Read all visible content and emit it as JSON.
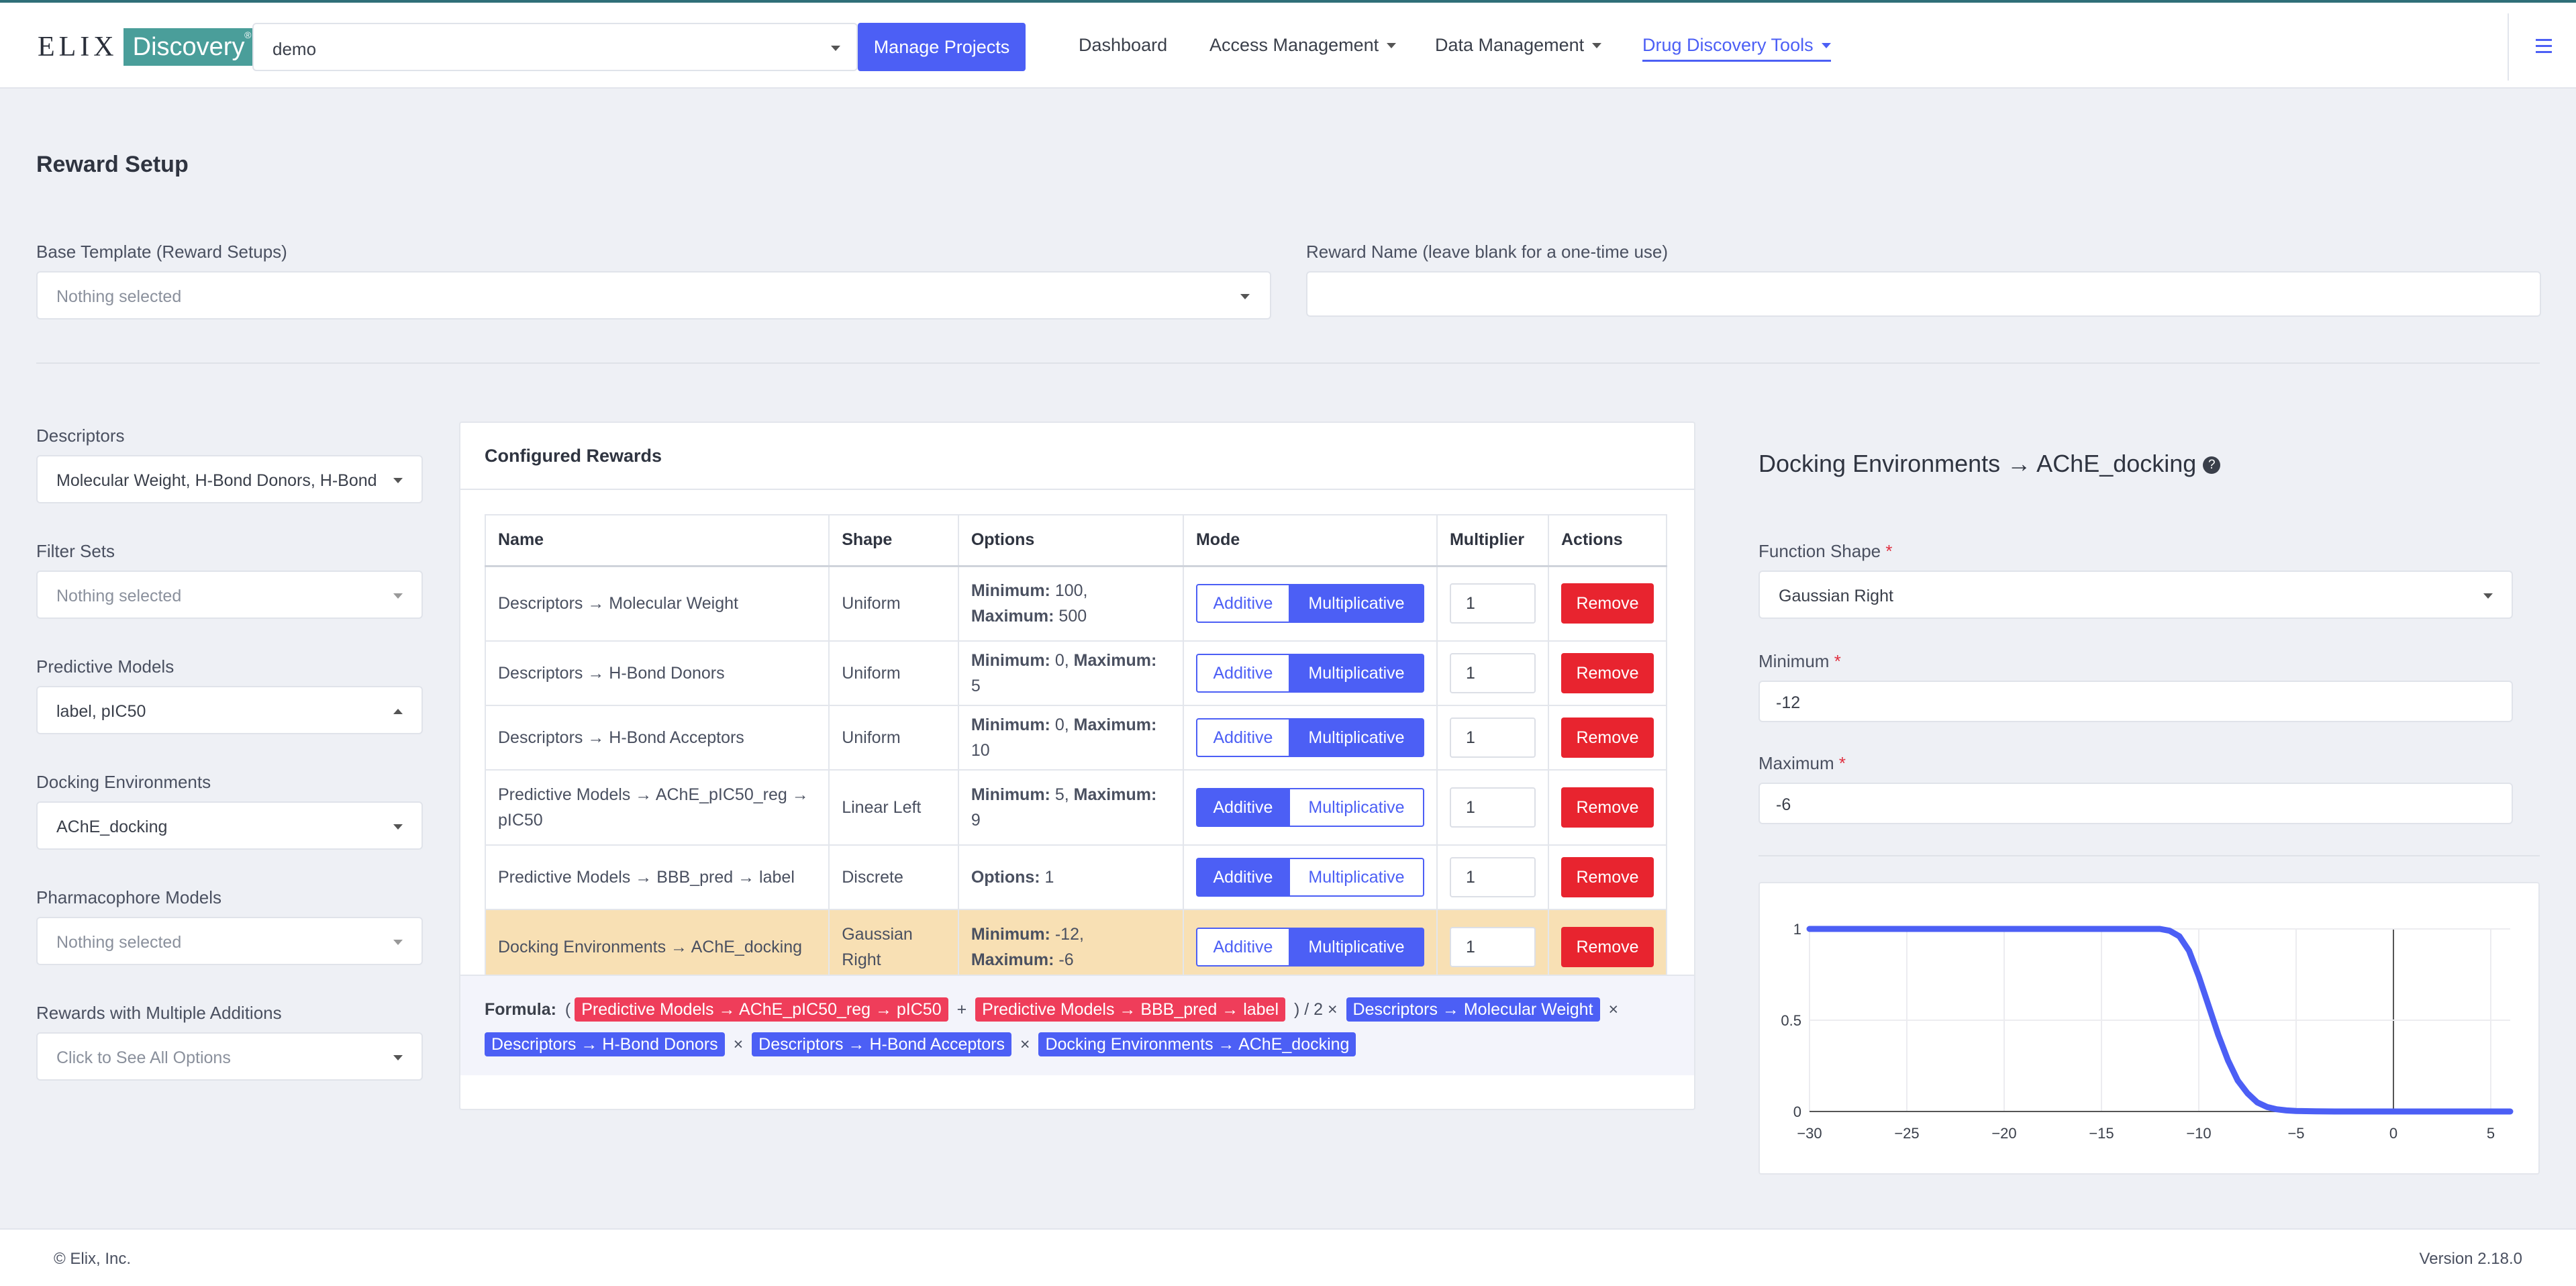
{
  "navbar": {
    "logo_text": "ELIX",
    "logo_badge": "Discovery",
    "project_value": "demo",
    "manage_projects": "Manage Projects",
    "links": [
      "Dashboard",
      "Access Management",
      "Data Management",
      "Drug Discovery Tools"
    ],
    "accent_color": "#4c5ff5"
  },
  "page": {
    "title": "Reward Setup",
    "base_template_label": "Base Template (Reward Setups)",
    "base_template_placeholder": "Nothing selected",
    "reward_name_label": "Reward Name (leave blank for a one-time use)",
    "reward_name_value": ""
  },
  "sidebar": {
    "descriptors_label": "Descriptors",
    "descriptors_value": "Molecular Weight, H-Bond Donors, H-Bond",
    "filter_sets_label": "Filter Sets",
    "filter_sets_value": "Nothing selected",
    "predictive_models_label": "Predictive Models",
    "predictive_models_value": "label, pIC50",
    "docking_label": "Docking Environments",
    "docking_value": "AChE_docking",
    "pharmacophore_label": "Pharmacophore Models",
    "pharmacophore_value": "Nothing selected",
    "multi_label": "Rewards with Multiple Additions",
    "multi_value": "Click to See All Options"
  },
  "configured": {
    "title": "Configured Rewards",
    "headers": [
      "Name",
      "Shape",
      "Options",
      "Mode",
      "Multiplier",
      "Actions"
    ],
    "additive_label": "Additive",
    "multiplicative_label": "Multiplicative",
    "remove_label": "Remove",
    "rows": [
      {
        "name": "Descriptors → Molecular Weight",
        "shape": "Uniform",
        "k1": "Minimum:",
        "v1": " 100, ",
        "k2": "Maximum:",
        "v2": " 500",
        "mode": "multiplicative",
        "mult": "1"
      },
      {
        "name": "Descriptors → H-Bond Donors",
        "shape": "Uniform",
        "k1": "Minimum:",
        "v1": " 0, ",
        "k2": "Maximum:",
        "v2": " 5",
        "mode": "multiplicative",
        "mult": "1"
      },
      {
        "name": "Descriptors → H-Bond Acceptors",
        "shape": "Uniform",
        "k1": "Minimum:",
        "v1": " 0, ",
        "k2": "Maximum:",
        "v2": " 10",
        "mode": "multiplicative",
        "mult": "1"
      },
      {
        "name": "Predictive Models → AChE_pIC50_reg → pIC50",
        "shape": "Linear Left",
        "k1": "Minimum:",
        "v1": " 5, ",
        "k2": "Maximum:",
        "v2": " 9",
        "mode": "additive",
        "mult": "1"
      },
      {
        "name": "Predictive Models → BBB_pred → label",
        "shape": "Discrete",
        "k1": "Options:",
        "v1": " 1",
        "k2": "",
        "v2": "",
        "mode": "additive",
        "mult": "1"
      },
      {
        "name": "Docking Environments → AChE_docking",
        "shape": "Gaussian Right",
        "k1": "Minimum:",
        "v1": " -12, ",
        "k2": "Maximum:",
        "v2": " -6",
        "mode": "multiplicative",
        "mult": "1"
      }
    ]
  },
  "formula": {
    "label": "Formula:",
    "open": "(",
    "add1": "Predictive Models → AChE_pIC50_reg → pIC50",
    "plus": "+",
    "add2": "Predictive Models → BBB_pred → label",
    "close_div": ") / 2 ×",
    "m1": "Descriptors → Molecular Weight",
    "times": "×",
    "m2": "Descriptors → H-Bond Donors",
    "m3": "Descriptors → H-Bond Acceptors",
    "m4": "Docking Environments → AChE_docking"
  },
  "detail": {
    "title": "Docking Environments → AChE_docking",
    "help": "?",
    "shape_label": "Function Shape",
    "shape_value": "Gaussian Right",
    "min_label": "Minimum",
    "min_value": "-12",
    "max_label": "Maximum",
    "max_value": "-6",
    "required_mark": "*"
  },
  "chart_data": {
    "type": "line",
    "title": "",
    "xlabel": "",
    "ylabel": "",
    "xlim": [
      -30,
      6
    ],
    "ylim": [
      0,
      1
    ],
    "xticks": [
      "−30",
      "−25",
      "−20",
      "−15",
      "−10",
      "−5",
      "0",
      "5"
    ],
    "yticks": [
      "0",
      "0.5",
      "1"
    ],
    "color": "#4c5ff5",
    "series": [
      {
        "x": [
          -30,
          -12,
          -11.5,
          -11,
          -10.5,
          -10,
          -9.5,
          -9,
          -8.5,
          -8,
          -7.5,
          -7,
          -6.5,
          -6,
          -5.5,
          -5,
          -4,
          -3,
          0,
          6
        ],
        "y": [
          1,
          1,
          0.99,
          0.96,
          0.88,
          0.74,
          0.58,
          0.42,
          0.28,
          0.17,
          0.1,
          0.05,
          0.025,
          0.012,
          0.006,
          0.003,
          0.001,
          0,
          0,
          0
        ]
      }
    ],
    "grid": true
  },
  "footer": {
    "copyright": "© Elix, Inc.",
    "version": "Version 2.18.0"
  }
}
